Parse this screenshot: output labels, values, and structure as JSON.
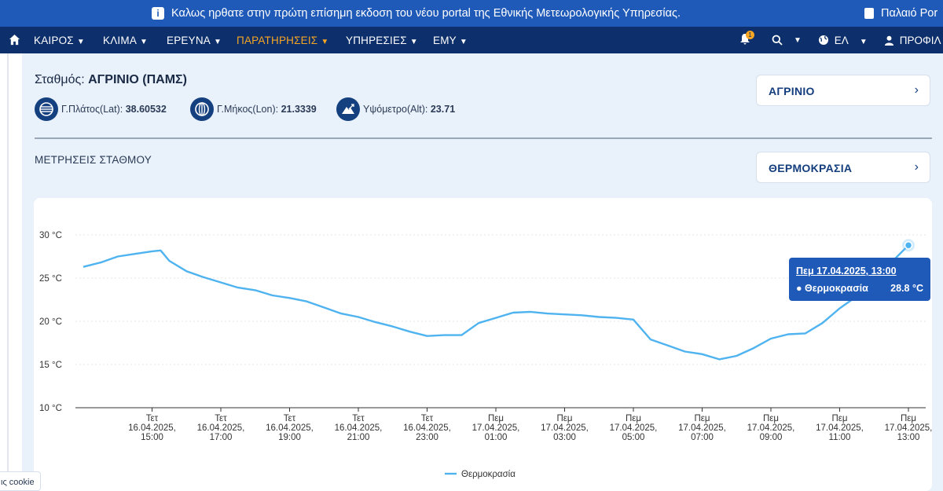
{
  "announcement": {
    "message": "Καλως ηρθατε στην πρώτη επίσημη εκδοση του νέου portal της Εθνικής Μετεωρολογικής Υπηρεσίας.",
    "old_portal": "Παλαιό Por"
  },
  "nav": {
    "items": [
      {
        "label": "ΚΑΙΡΟΣ"
      },
      {
        "label": "ΚΛΙΜΑ"
      },
      {
        "label": "ΕΡΕΥΝΑ"
      },
      {
        "label": "ΠΑΡΑΤΗΡΗΣΕΙΣ"
      },
      {
        "label": "ΥΠΗΡΕΣΙΕΣ"
      },
      {
        "label": "ΕΜΥ"
      }
    ],
    "active_color": "#f6a623",
    "notification_count": "1",
    "language": "ΕΛ",
    "profile": "ΠΡΟΦΙΛ"
  },
  "station": {
    "label": "Σταθμός:",
    "name": "ΑΓΡΙΝΙΟ (ΠΑΜΣ)",
    "lat_label": "Γ.Πλάτος(Lat):",
    "lat": "38.60532",
    "lon_label": "Γ.Μήκος(Lon):",
    "lon": "21.3339",
    "alt_label": "Υψόμετρο(Alt):",
    "alt": "23.71",
    "select_value": "ΑΓΡΙΝΙΟ"
  },
  "measurements": {
    "title": "ΜΕΤΡΗΣΕΙΣ ΣΤΑΘΜΟΥ",
    "select_value": "ΘΕΡΜΟΚΡΑΣΙΑ"
  },
  "tooltip": {
    "title": "Πεμ 17.04.2025, 13:00",
    "series": "● Θερμοκρασία",
    "value": "28.8 °C"
  },
  "cookie": {
    "label": "ις cookie"
  },
  "colors": {
    "brand": "#0d2f6b",
    "accent": "#1f5ab8",
    "line": "#4fb3f0"
  },
  "chart_data": {
    "type": "line",
    "title": "",
    "xlabel": "",
    "ylabel": "",
    "ylim": [
      10,
      30
    ],
    "yticks": [
      "30 °C",
      "25 °C",
      "20 °C",
      "15 °C",
      "10 °C"
    ],
    "grid": true,
    "legend_position": "bottom",
    "x_start": "16.04.2025 13:00",
    "x_end": "17.04.2025 13:00",
    "xticks": [
      {
        "day": "Τετ",
        "date": "16.04.2025,",
        "time": "15:00",
        "h": 2
      },
      {
        "day": "Τετ",
        "date": "16.04.2025,",
        "time": "17:00",
        "h": 4
      },
      {
        "day": "Τετ",
        "date": "16.04.2025,",
        "time": "19:00",
        "h": 6
      },
      {
        "day": "Τετ",
        "date": "16.04.2025,",
        "time": "21:00",
        "h": 8
      },
      {
        "day": "Τετ",
        "date": "16.04.2025,",
        "time": "23:00",
        "h": 10
      },
      {
        "day": "Πεμ",
        "date": "17.04.2025,",
        "time": "01:00",
        "h": 12
      },
      {
        "day": "Πεμ",
        "date": "17.04.2025,",
        "time": "03:00",
        "h": 14
      },
      {
        "day": "Πεμ",
        "date": "17.04.2025,",
        "time": "05:00",
        "h": 16
      },
      {
        "day": "Πεμ",
        "date": "17.04.2025,",
        "time": "07:00",
        "h": 18
      },
      {
        "day": "Πεμ",
        "date": "17.04.2025,",
        "time": "09:00",
        "h": 20
      },
      {
        "day": "Πεμ",
        "date": "17.04.2025,",
        "time": "11:00",
        "h": 22
      },
      {
        "day": "Πεμ",
        "date": "17.04.2025,",
        "time": "13:00",
        "h": 24
      }
    ],
    "series": [
      {
        "name": "Θερμοκρασία",
        "color": "#4fb3f0",
        "x": [
          0,
          0.5,
          1,
          1.5,
          2,
          2.25,
          2.5,
          3,
          3.5,
          4,
          4.5,
          5,
          5.5,
          6,
          6.5,
          7,
          7.5,
          8,
          8.5,
          9,
          9.5,
          10,
          10.5,
          11,
          11.5,
          12,
          12.5,
          13,
          13.5,
          14,
          14.5,
          15,
          15.5,
          16,
          16.5,
          17,
          17.5,
          18,
          18.5,
          19,
          19.5,
          20,
          20.5,
          21,
          21.5,
          22,
          22.5,
          23,
          23.5,
          24
        ],
        "y": [
          26.3,
          26.8,
          27.5,
          27.8,
          28.1,
          28.2,
          27.0,
          25.8,
          25.1,
          24.5,
          23.9,
          23.6,
          23.0,
          22.7,
          22.3,
          21.6,
          20.9,
          20.5,
          19.9,
          19.4,
          18.8,
          18.3,
          18.4,
          18.4,
          19.8,
          20.4,
          21.0,
          21.1,
          20.9,
          20.8,
          20.7,
          20.5,
          20.4,
          20.2,
          17.9,
          17.2,
          16.5,
          16.2,
          15.6,
          16.0,
          16.9,
          18.0,
          18.5,
          18.6,
          19.8,
          21.5,
          22.9,
          24.8,
          26.8,
          28.8
        ]
      }
    ]
  }
}
